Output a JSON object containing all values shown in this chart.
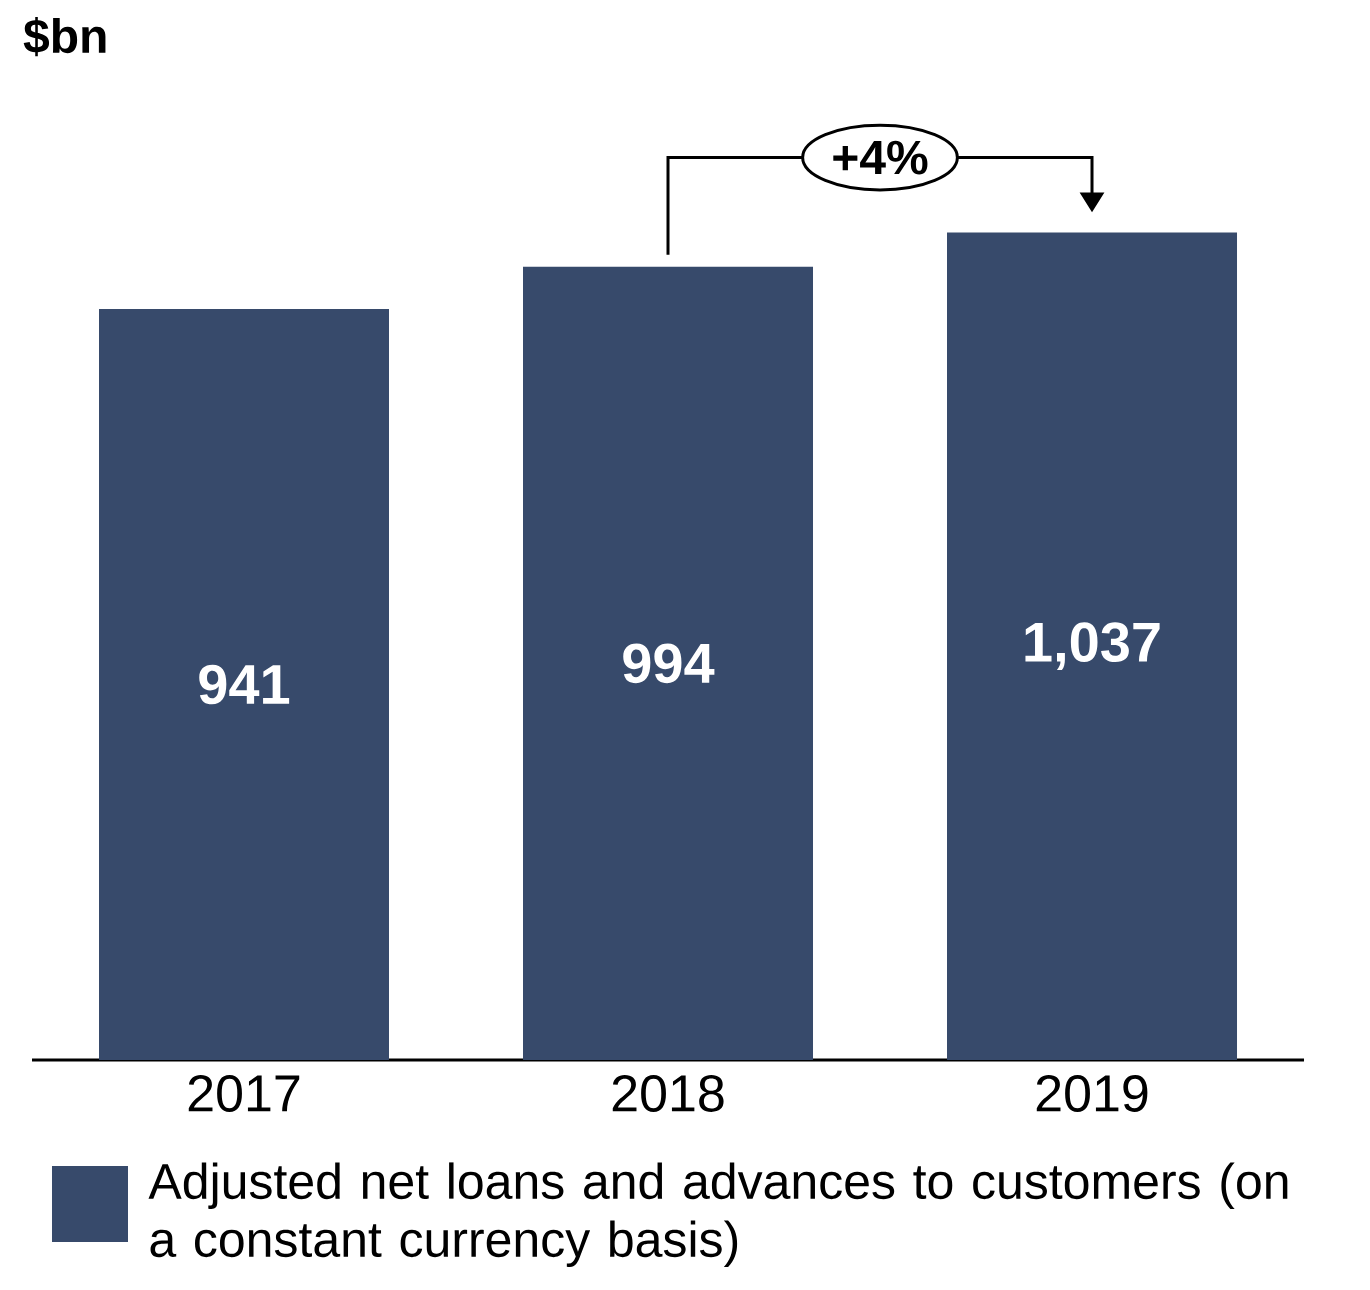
{
  "chart_data": {
    "type": "bar",
    "ylabel": "$bn",
    "categories": [
      "2017",
      "2018",
      "2019"
    ],
    "series": [
      {
        "name": "Adjusted net loans and advances to customers (on a constant currency basis)",
        "color": "#374a6b",
        "values": [
          941,
          994,
          1037
        ],
        "value_labels": [
          "941",
          "994",
          "1,037"
        ]
      }
    ],
    "legend": "bottom",
    "annotations": [
      "+4%"
    ]
  }
}
